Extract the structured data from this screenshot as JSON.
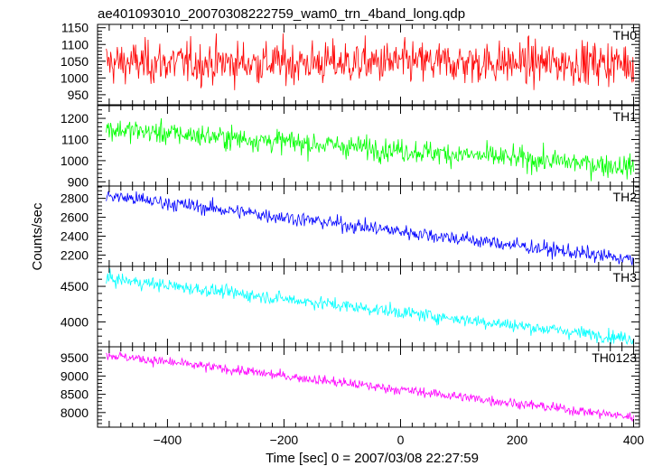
{
  "chart_data": {
    "type": "line",
    "title": "ae401093010_20070308222759_wam0_trn_4band_long.qdp",
    "xlabel": "Time [sec] 0 = 2007/03/08 22:27:59",
    "ylabel": "Counts/sec",
    "xlim": [
      -520,
      410
    ],
    "x_ticks": [
      -400,
      -200,
      0,
      200,
      400
    ],
    "x_tick_labels": [
      "−400",
      "−200",
      "0",
      "200",
      "400"
    ],
    "x_range": [
      -505,
      400
    ],
    "grid": false,
    "panels": [
      {
        "name": "TH0",
        "color": "#ff0000",
        "ylim": [
          920,
          1160
        ],
        "y_ticks": [
          950,
          1000,
          1050,
          1100,
          1150
        ],
        "y_tick_labels": [
          "950",
          "1000",
          "1050",
          "1100",
          "1150"
        ],
        "trend_start": 1045,
        "trend_end": 1045,
        "noise_sd": 45
      },
      {
        "name": "TH1",
        "color": "#00ff00",
        "ylim": [
          880,
          1260
        ],
        "y_ticks": [
          900,
          1000,
          1100,
          1200
        ],
        "y_tick_labels": [
          "900",
          "1000",
          "1100",
          "1200"
        ],
        "trend_start": 1150,
        "trend_end": 970,
        "noise_sd": 38
      },
      {
        "name": "TH2",
        "color": "#0000ff",
        "ylim": [
          2080,
          2930
        ],
        "y_ticks": [
          2200,
          2400,
          2600,
          2800
        ],
        "y_tick_labels": [
          "2200",
          "2400",
          "2600",
          "2800"
        ],
        "trend_start": 2830,
        "trend_end": 2150,
        "noise_sd": 55
      },
      {
        "name": "TH3",
        "color": "#00ffff",
        "ylim": [
          3650,
          4780
        ],
        "y_ticks": [
          4000,
          4500
        ],
        "y_tick_labels": [
          "4000",
          "4500"
        ],
        "trend_start": 4610,
        "trend_end": 3760,
        "noise_sd": 65
      },
      {
        "name": "TH0123",
        "color": "#ff00ff",
        "ylim": [
          7600,
          9800
        ],
        "y_ticks": [
          8000,
          8500,
          9000,
          9500
        ],
        "y_tick_labels": [
          "8000",
          "8500",
          "9000",
          "9500"
        ],
        "trend_start": 9580,
        "trend_end": 7870,
        "noise_sd": 95
      }
    ]
  }
}
